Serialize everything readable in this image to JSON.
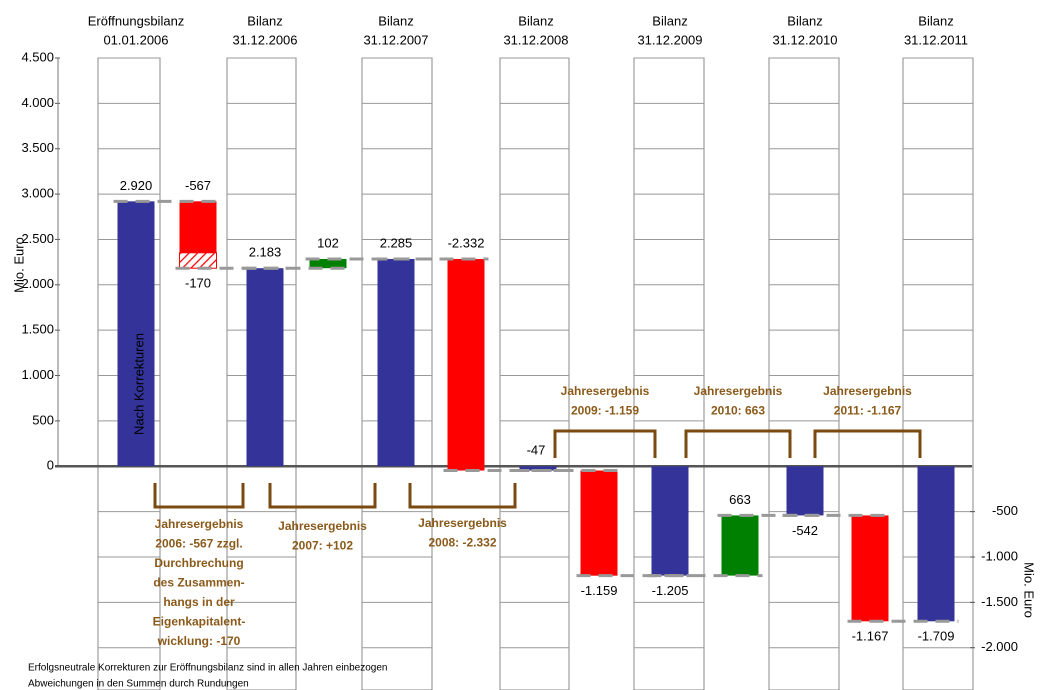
{
  "chart_data": {
    "type": "waterfall",
    "column_headers": [
      [
        "Eröffnungsbilanz",
        "01.01.2006"
      ],
      [
        "Bilanz",
        "31.12.2006"
      ],
      [
        "Bilanz",
        "31.12.2007"
      ],
      [
        "Bilanz",
        "31.12.2008"
      ],
      [
        "Bilanz",
        "31.12.2009"
      ],
      [
        "Bilanz",
        "31.12.2010"
      ],
      [
        "Bilanz",
        "31.12.2011"
      ]
    ],
    "values": [
      2920,
      -567,
      -170,
      2183,
      102,
      2285,
      -2332,
      -47,
      -1159,
      -1205,
      663,
      -542,
      -1167,
      -1709
    ],
    "value_labels": [
      "2.920",
      "-567",
      "-170",
      "2.183",
      "102",
      "2.285",
      "-2.332",
      "-47",
      "-1.159",
      "-1.205",
      "663",
      "-542",
      "-1.167",
      "-1.709"
    ],
    "kinds": [
      "total",
      "delta",
      "delta",
      "total",
      "delta",
      "total",
      "delta",
      "total",
      "delta",
      "total",
      "delta",
      "total",
      "delta",
      "total"
    ],
    "colors": [
      "#333399",
      "#ff0000",
      "#ff0000",
      "#333399",
      "#008000",
      "#333399",
      "#ff0000",
      "#333399",
      "#ff0000",
      "#333399",
      "#008000",
      "#333399",
      "#ff0000",
      "#333399"
    ],
    "bar_styles": [
      "solid",
      "solid",
      "hatched",
      "solid",
      "solid",
      "solid",
      "solid",
      "solid",
      "solid",
      "solid",
      "solid",
      "solid",
      "solid",
      "solid"
    ],
    "bar_text": "Nach Korrekturen",
    "ylabel": "Mio. Euro",
    "y2label": "Mio. Euro",
    "ylim": [
      -2400,
      4500
    ],
    "yticks": [
      0,
      500,
      {
        "value": 1000,
        "label": "1.000"
      },
      {
        "value": 1500,
        "label": "1.500"
      },
      {
        "value": 2000,
        "label": "2.000"
      },
      {
        "value": 2500,
        "label": "2.500"
      },
      {
        "value": 3000,
        "label": "3.000"
      },
      {
        "value": 3500,
        "label": "3.500"
      },
      {
        "value": 4000,
        "label": "4.000"
      },
      {
        "value": 4500,
        "label": "4.500"
      }
    ],
    "y2lim": [
      -2400,
      4500
    ],
    "y2ticks": [
      -500,
      {
        "value": -1000,
        "label": "-1.000"
      },
      {
        "value": -1500,
        "label": "-1.500"
      },
      {
        "value": -2000,
        "label": "-2.000"
      }
    ],
    "annotations": [
      [
        "Jahresergebnis",
        "2006: -567 zzgl.",
        "Durchbrechung",
        "des Zusammen-",
        "hangs in der",
        "Eigenkapitalent-",
        "wicklung: -170"
      ],
      [
        "Jahresergebnis",
        "2007: +102"
      ],
      [
        "Jahresergebnis",
        "2008: -2.332"
      ],
      [
        "Jahresergebnis",
        "2009: -1.159"
      ],
      [
        "Jahresergebnis",
        "2010: 663"
      ],
      [
        "Jahresergebnis",
        "2011: -1.167"
      ]
    ],
    "footnotes": [
      "Erfolgsneutrale Korrekturen zur Eröffnungsbilanz sind in allen Jahren einbezogen",
      "Abweichungen in den Summen durch Rundungen"
    ]
  }
}
